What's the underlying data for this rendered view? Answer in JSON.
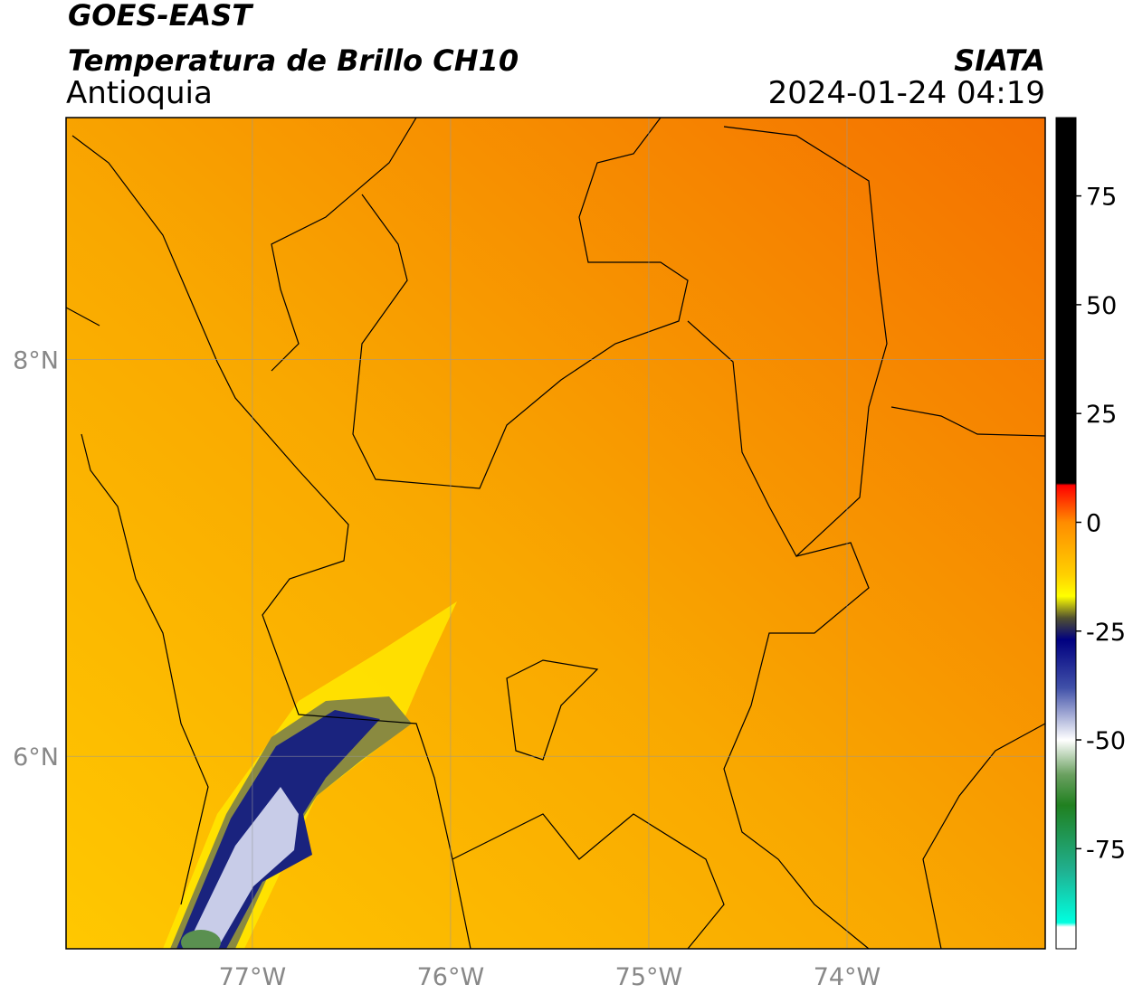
{
  "header": {
    "title": "GOES-EAST",
    "subtitle": "Temperatura de Brillo CH10",
    "region": "Antioquia",
    "source": "SIATA",
    "datetime": "2024-01-24 04:19"
  },
  "map": {
    "xlim": [
      -77.94,
      -73.0
    ],
    "ylim": [
      5.03,
      9.22
    ],
    "xticks": [
      {
        "value": -77,
        "label": "77°W"
      },
      {
        "value": -76,
        "label": "76°W"
      },
      {
        "value": -75,
        "label": "75°W"
      },
      {
        "value": -74,
        "label": "74°W"
      }
    ],
    "yticks": [
      {
        "value": 8,
        "label": "8°N"
      },
      {
        "value": 6,
        "label": "6°N"
      }
    ],
    "grid": true
  },
  "colorbar": {
    "lim": [
      -98,
      93
    ],
    "ticks": [
      75,
      50,
      25,
      0,
      -25,
      -50,
      -75
    ],
    "stops": [
      [
        93,
        "#000000"
      ],
      [
        9,
        "#000000"
      ],
      [
        8.5,
        "#ff0000"
      ],
      [
        0,
        "#ff8c00"
      ],
      [
        -12,
        "#ffd000"
      ],
      [
        -17,
        "#ffff00"
      ],
      [
        -22,
        "#505030"
      ],
      [
        -27,
        "#000080"
      ],
      [
        -38,
        "#4050a8"
      ],
      [
        -50,
        "#ffffff"
      ],
      [
        -58,
        "#6aa060"
      ],
      [
        -65,
        "#208020"
      ],
      [
        -80,
        "#20b090"
      ],
      [
        -92,
        "#00ffe0"
      ],
      [
        -93,
        "#ffffff"
      ],
      [
        -98,
        "#ffffff"
      ]
    ]
  }
}
